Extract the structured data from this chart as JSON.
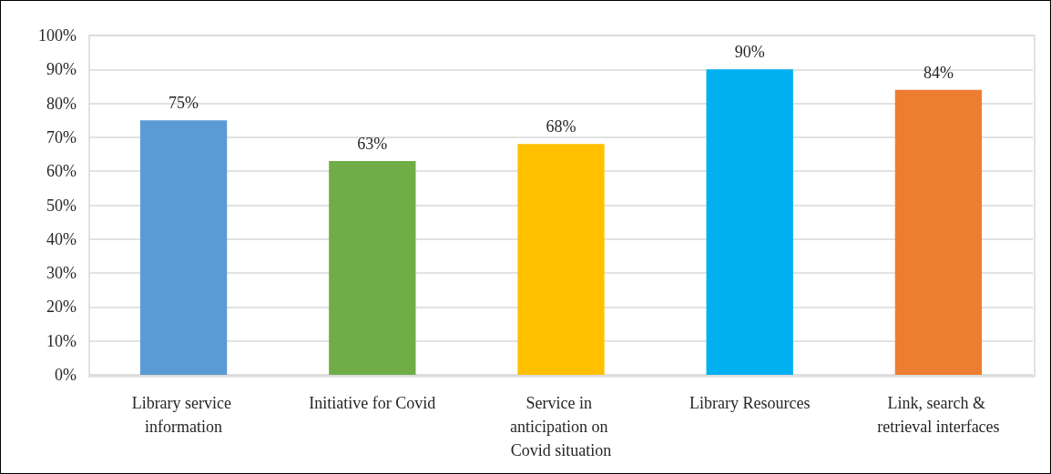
{
  "chart_data": {
    "type": "bar",
    "categories": [
      "Library service information",
      "Initiative for Covid",
      "Service in anticipation on Covid situation",
      "Library Resources",
      "Link, search & retrieval interfaces"
    ],
    "values": [
      75,
      63,
      68,
      90,
      84
    ],
    "value_labels": [
      "75%",
      "63%",
      "68%",
      "90%",
      "84%"
    ],
    "colors": [
      "#5b9bd5",
      "#70ad47",
      "#ffc000",
      "#00b0f0",
      "#ed7d31"
    ],
    "ylim": [
      0,
      100
    ],
    "yticks": [
      {
        "value": 0,
        "label": "0%"
      },
      {
        "value": 10,
        "label": "10%"
      },
      {
        "value": 20,
        "label": "20%"
      },
      {
        "value": 30,
        "label": "30%"
      },
      {
        "value": 40,
        "label": "40%"
      },
      {
        "value": 50,
        "label": "50%"
      },
      {
        "value": 60,
        "label": "60%"
      },
      {
        "value": 70,
        "label": "70%"
      },
      {
        "value": 80,
        "label": "80%"
      },
      {
        "value": 90,
        "label": "90%"
      },
      {
        "value": 100,
        "label": "100%"
      }
    ],
    "grid": "y"
  }
}
